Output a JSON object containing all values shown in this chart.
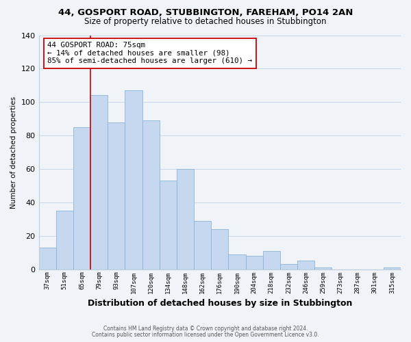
{
  "title": "44, GOSPORT ROAD, STUBBINGTON, FAREHAM, PO14 2AN",
  "subtitle": "Size of property relative to detached houses in Stubbington",
  "xlabel": "Distribution of detached houses by size in Stubbington",
  "ylabel": "Number of detached properties",
  "bin_labels": [
    "37sqm",
    "51sqm",
    "65sqm",
    "79sqm",
    "93sqm",
    "107sqm",
    "120sqm",
    "134sqm",
    "148sqm",
    "162sqm",
    "176sqm",
    "190sqm",
    "204sqm",
    "218sqm",
    "232sqm",
    "246sqm",
    "259sqm",
    "273sqm",
    "287sqm",
    "301sqm",
    "315sqm"
  ],
  "bar_heights": [
    13,
    35,
    85,
    104,
    88,
    107,
    89,
    53,
    60,
    29,
    24,
    9,
    8,
    11,
    3,
    5,
    1,
    0,
    0,
    0,
    1
  ],
  "bar_color": "#c5d8f0",
  "bar_edge_color": "#8ab4d8",
  "ylim": [
    0,
    140
  ],
  "yticks": [
    0,
    20,
    40,
    60,
    80,
    100,
    120,
    140
  ],
  "property_line_color": "#cc0000",
  "annotation_title": "44 GOSPORT ROAD: 75sqm",
  "annotation_line1": "← 14% of detached houses are smaller (98)",
  "annotation_line2": "85% of semi-detached houses are larger (610) →",
  "annotation_box_color": "#ffffff",
  "annotation_box_edge": "#cc0000",
  "footer1": "Contains HM Land Registry data © Crown copyright and database right 2024.",
  "footer2": "Contains public sector information licensed under the Open Government Licence v3.0.",
  "background_color": "#f0f4f8",
  "grid_color": "#c8d8e8",
  "title_fontsize": 9.5,
  "subtitle_fontsize": 8.5
}
